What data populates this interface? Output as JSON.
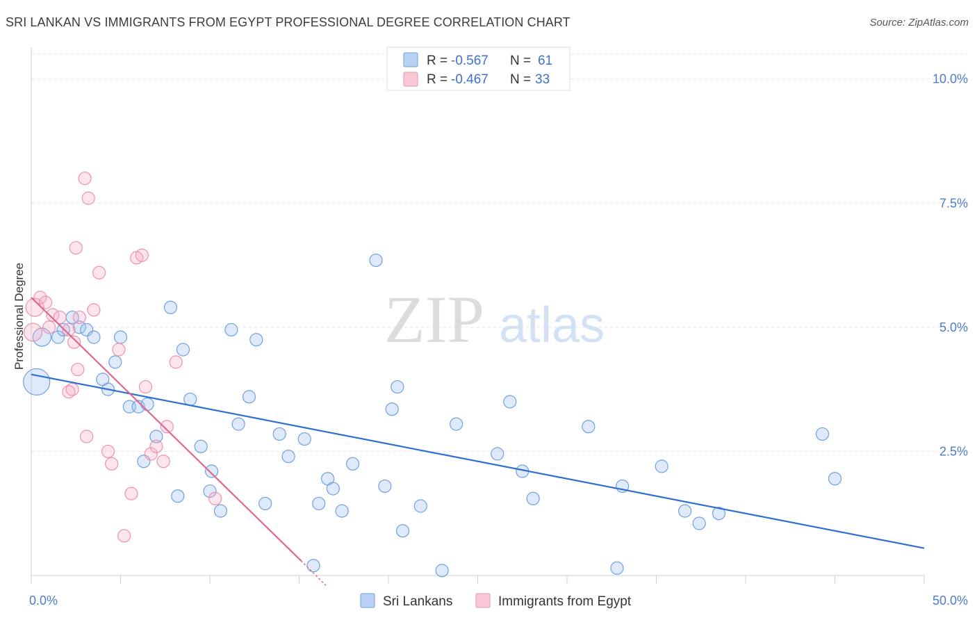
{
  "header": {
    "title": "SRI LANKAN VS IMMIGRANTS FROM EGYPT PROFESSIONAL DEGREE CORRELATION CHART",
    "source": "Source: ZipAtlas.com"
  },
  "watermark": {
    "zip": "ZIP",
    "atlas": "atlas"
  },
  "chart_data": {
    "type": "scatter",
    "title": "SRI LANKAN VS IMMIGRANTS FROM EGYPT PROFESSIONAL DEGREE CORRELATION CHART",
    "xlabel": "",
    "ylabel": "Professional Degree",
    "xlim": [
      0,
      50
    ],
    "ylim": [
      0,
      10.5
    ],
    "x_tick_labels": [
      {
        "value": 0,
        "label": "0.0%"
      },
      {
        "value": 50,
        "label": "50.0%"
      }
    ],
    "y_tick_labels": [
      {
        "value": 2.5,
        "label": "2.5%"
      },
      {
        "value": 5.0,
        "label": "5.0%"
      },
      {
        "value": 7.5,
        "label": "7.5%"
      },
      {
        "value": 10.0,
        "label": "10.0%"
      }
    ],
    "grid": true,
    "legend_position": "bottom",
    "colors": {
      "sri_lankans": "#6f9fe0",
      "egypt": "#ee90ae",
      "sri_line": "#2f6fd0",
      "egypt_line": "#e06590"
    },
    "stats_box": [
      {
        "series": "Sri Lankans",
        "r_label": "R =",
        "r": "-0.567",
        "n_label": "N =",
        "n": "61"
      },
      {
        "series": "Immigrants from Egypt",
        "r_label": "R =",
        "r": "-0.467",
        "n_label": "N =",
        "n": "33"
      }
    ],
    "series": [
      {
        "name": "Sri Lankans",
        "color": "#6f9fe0",
        "points": [
          [
            0.3,
            3.9,
            3
          ],
          [
            0.6,
            4.8,
            2
          ],
          [
            1.5,
            4.8,
            1
          ],
          [
            1.8,
            4.95,
            1
          ],
          [
            2.3,
            5.2,
            1
          ],
          [
            2.7,
            5.0,
            1
          ],
          [
            3.1,
            4.95,
            1
          ],
          [
            3.5,
            4.8,
            1
          ],
          [
            4.0,
            3.95,
            1
          ],
          [
            4.3,
            3.75,
            1
          ],
          [
            4.7,
            4.3,
            1
          ],
          [
            5.0,
            4.8,
            1
          ],
          [
            5.5,
            3.4,
            1
          ],
          [
            6.0,
            3.4,
            1
          ],
          [
            6.5,
            3.45,
            1
          ],
          [
            7.0,
            2.8,
            1
          ],
          [
            6.3,
            2.3,
            1
          ],
          [
            7.8,
            5.4,
            1
          ],
          [
            8.2,
            1.6,
            1
          ],
          [
            8.5,
            4.55,
            1
          ],
          [
            8.9,
            3.55,
            1
          ],
          [
            9.5,
            2.6,
            1
          ],
          [
            10.0,
            1.7,
            1
          ],
          [
            10.1,
            2.1,
            1
          ],
          [
            10.6,
            1.3,
            1
          ],
          [
            11.2,
            4.95,
            1
          ],
          [
            11.6,
            3.05,
            1
          ],
          [
            12.2,
            3.6,
            1
          ],
          [
            12.6,
            4.75,
            1
          ],
          [
            13.1,
            1.45,
            1
          ],
          [
            13.9,
            2.85,
            1
          ],
          [
            14.4,
            2.4,
            1
          ],
          [
            15.3,
            2.75,
            1
          ],
          [
            15.8,
            0.2,
            1
          ],
          [
            16.1,
            1.45,
            1
          ],
          [
            16.6,
            1.95,
            1
          ],
          [
            16.9,
            1.75,
            1
          ],
          [
            17.4,
            1.3,
            1
          ],
          [
            18.0,
            2.25,
            1
          ],
          [
            19.3,
            6.35,
            1
          ],
          [
            19.8,
            1.8,
            1
          ],
          [
            20.2,
            3.35,
            1
          ],
          [
            20.5,
            3.8,
            1
          ],
          [
            20.8,
            0.9,
            1
          ],
          [
            21.8,
            1.4,
            1
          ],
          [
            23.0,
            0.1,
            1
          ],
          [
            23.8,
            3.05,
            1
          ],
          [
            26.1,
            2.45,
            1
          ],
          [
            26.8,
            3.5,
            1
          ],
          [
            27.5,
            2.1,
            1
          ],
          [
            28.1,
            1.55,
            1
          ],
          [
            31.2,
            3.0,
            1
          ],
          [
            32.8,
            0.15,
            1
          ],
          [
            33.1,
            1.8,
            1
          ],
          [
            35.3,
            2.2,
            1
          ],
          [
            36.6,
            1.3,
            1
          ],
          [
            37.4,
            1.05,
            1
          ],
          [
            38.5,
            1.25,
            1
          ],
          [
            44.3,
            2.85,
            1
          ],
          [
            45.0,
            1.95,
            1
          ]
        ],
        "trend": {
          "x0": 0,
          "y0": 4.05,
          "x1": 50,
          "y1": 0.55
        }
      },
      {
        "name": "Immigrants from Egypt",
        "color": "#ee90ae",
        "points": [
          [
            0.1,
            4.9,
            2
          ],
          [
            0.2,
            5.4,
            2
          ],
          [
            0.5,
            5.6,
            1
          ],
          [
            0.8,
            5.5,
            1
          ],
          [
            1.0,
            5.0,
            1
          ],
          [
            1.2,
            5.25,
            1
          ],
          [
            1.6,
            5.2,
            1
          ],
          [
            2.1,
            4.95,
            1
          ],
          [
            2.4,
            4.7,
            1
          ],
          [
            2.7,
            5.2,
            1
          ],
          [
            3.0,
            8.0,
            1
          ],
          [
            3.2,
            7.6,
            1
          ],
          [
            2.5,
            6.6,
            1
          ],
          [
            3.5,
            5.35,
            1
          ],
          [
            3.8,
            6.1,
            1
          ],
          [
            4.3,
            2.5,
            1
          ],
          [
            4.5,
            2.25,
            1
          ],
          [
            4.9,
            4.55,
            1
          ],
          [
            5.2,
            0.8,
            1
          ],
          [
            5.6,
            1.65,
            1
          ],
          [
            5.9,
            6.4,
            1
          ],
          [
            6.2,
            6.45,
            1
          ],
          [
            6.4,
            3.8,
            1
          ],
          [
            6.7,
            2.45,
            1
          ],
          [
            7.0,
            2.6,
            1
          ],
          [
            7.4,
            2.3,
            1
          ],
          [
            7.6,
            3.0,
            1
          ],
          [
            8.1,
            4.3,
            1
          ],
          [
            2.6,
            4.15,
            1
          ],
          [
            2.1,
            3.7,
            1
          ],
          [
            2.3,
            3.75,
            1
          ],
          [
            3.1,
            2.8,
            1
          ],
          [
            10.3,
            1.55,
            1
          ]
        ],
        "trend": {
          "x0": 0,
          "y0": 5.6,
          "x1": 15.1,
          "y1": 0.3
        },
        "trend_ext": {
          "x0": 15.1,
          "y0": 0.3,
          "x1": 16.5,
          "y1": -0.2
        }
      }
    ]
  },
  "legend": {
    "items": [
      {
        "label": "Sri Lankans",
        "color": "#b9d1f3",
        "border": "#6f9fe0"
      },
      {
        "label": "Immigrants from Egypt",
        "color": "#f9c8d7",
        "border": "#ee90ae"
      }
    ]
  }
}
